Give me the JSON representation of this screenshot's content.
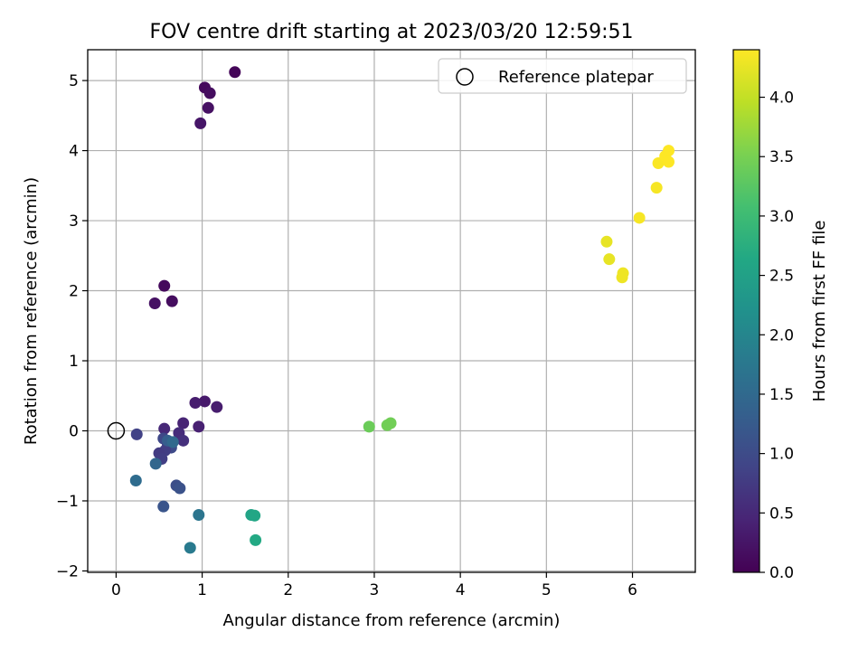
{
  "chart_data": {
    "type": "scatter",
    "title": "FOV centre drift starting at 2023/03/20 12:59:51",
    "xlabel": "Angular distance from reference (arcmin)",
    "ylabel": "Rotation from reference (arcmin)",
    "xlim": [
      -0.33,
      6.73
    ],
    "ylim": [
      -2.02,
      5.44
    ],
    "xticks": [
      0,
      1,
      2,
      3,
      4,
      5,
      6
    ],
    "yticks": [
      -2,
      -1,
      0,
      1,
      2,
      3,
      4,
      5
    ],
    "xtick_labels": [
      "0",
      "1",
      "2",
      "3",
      "4",
      "5",
      "6"
    ],
    "ytick_labels": [
      "−2",
      "−1",
      "0",
      "1",
      "2",
      "3",
      "4",
      "5"
    ],
    "grid": true,
    "legend": {
      "position": "top-right",
      "entries": [
        {
          "label": "Reference platepar",
          "marker": "open-circle",
          "x": 0,
          "y": 0
        }
      ]
    },
    "colorbar": {
      "label": "Hours from first FF file",
      "colormap": "viridis",
      "range": [
        0,
        4.4
      ],
      "ticks": [
        0,
        0.5,
        1,
        1.5,
        2,
        2.5,
        3,
        3.5,
        4
      ],
      "tick_labels": [
        "0.0",
        "0.5",
        "1.0",
        "1.5",
        "2.0",
        "2.5",
        "3.0",
        "3.5",
        "4.0"
      ]
    },
    "points": [
      {
        "x": 1.38,
        "y": 5.12,
        "t": 0.05
      },
      {
        "x": 1.03,
        "y": 4.9,
        "t": 0.1
      },
      {
        "x": 1.09,
        "y": 4.82,
        "t": 0.15
      },
      {
        "x": 1.07,
        "y": 4.61,
        "t": 0.2
      },
      {
        "x": 0.98,
        "y": 4.39,
        "t": 0.25
      },
      {
        "x": 0.56,
        "y": 2.07,
        "t": 0.1
      },
      {
        "x": 0.65,
        "y": 1.85,
        "t": 0.15
      },
      {
        "x": 0.45,
        "y": 1.82,
        "t": 0.2
      },
      {
        "x": 1.03,
        "y": 0.42,
        "t": 0.3
      },
      {
        "x": 0.92,
        "y": 0.4,
        "t": 0.35
      },
      {
        "x": 1.17,
        "y": 0.34,
        "t": 0.35
      },
      {
        "x": 0.78,
        "y": 0.11,
        "t": 0.45
      },
      {
        "x": 0.96,
        "y": 0.06,
        "t": 0.4
      },
      {
        "x": 0.56,
        "y": 0.03,
        "t": 0.5
      },
      {
        "x": 0.73,
        "y": -0.03,
        "t": 0.55
      },
      {
        "x": 0.24,
        "y": -0.05,
        "t": 0.85
      },
      {
        "x": 0.78,
        "y": -0.14,
        "t": 0.6
      },
      {
        "x": 0.55,
        "y": -0.11,
        "t": 0.95
      },
      {
        "x": 0.6,
        "y": -0.2,
        "t": 0.9
      },
      {
        "x": 0.64,
        "y": -0.24,
        "t": 1.0
      },
      {
        "x": 0.57,
        "y": -0.28,
        "t": 0.8
      },
      {
        "x": 0.5,
        "y": -0.32,
        "t": 0.75
      },
      {
        "x": 0.53,
        "y": -0.4,
        "t": 0.8
      },
      {
        "x": 0.6,
        "y": -0.14,
        "t": 1.3
      },
      {
        "x": 0.66,
        "y": -0.16,
        "t": 1.5
      },
      {
        "x": 0.46,
        "y": -0.47,
        "t": 1.45
      },
      {
        "x": 0.23,
        "y": -0.71,
        "t": 1.55
      },
      {
        "x": 0.7,
        "y": -0.78,
        "t": 1.05
      },
      {
        "x": 0.74,
        "y": -0.82,
        "t": 1.1
      },
      {
        "x": 0.55,
        "y": -1.08,
        "t": 1.15
      },
      {
        "x": 0.96,
        "y": -1.2,
        "t": 1.7
      },
      {
        "x": 0.86,
        "y": -1.67,
        "t": 1.8
      },
      {
        "x": 1.57,
        "y": -1.2,
        "t": 2.55
      },
      {
        "x": 1.61,
        "y": -1.21,
        "t": 2.6
      },
      {
        "x": 1.62,
        "y": -1.56,
        "t": 2.65
      },
      {
        "x": 2.94,
        "y": 0.06,
        "t": 3.4
      },
      {
        "x": 3.15,
        "y": 0.08,
        "t": 3.45
      },
      {
        "x": 3.19,
        "y": 0.11,
        "t": 3.45
      },
      {
        "x": 5.7,
        "y": 2.7,
        "t": 4.25
      },
      {
        "x": 5.73,
        "y": 2.45,
        "t": 4.25
      },
      {
        "x": 5.89,
        "y": 2.25,
        "t": 4.3
      },
      {
        "x": 5.88,
        "y": 2.19,
        "t": 4.3
      },
      {
        "x": 6.08,
        "y": 3.04,
        "t": 4.35
      },
      {
        "x": 6.28,
        "y": 3.47,
        "t": 4.35
      },
      {
        "x": 6.3,
        "y": 3.82,
        "t": 4.38
      },
      {
        "x": 6.38,
        "y": 3.92,
        "t": 4.4
      },
      {
        "x": 6.42,
        "y": 4.0,
        "t": 4.4
      },
      {
        "x": 6.42,
        "y": 3.84,
        "t": 4.4
      }
    ]
  }
}
